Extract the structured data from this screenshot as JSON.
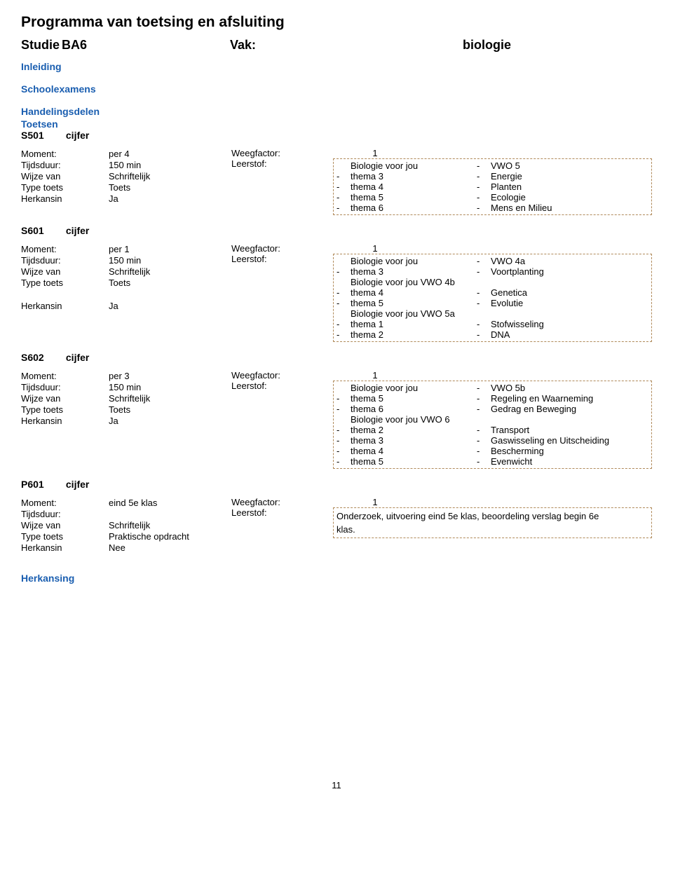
{
  "title": "Programma van toetsing en afsluiting",
  "studie_label": "Studie",
  "studie_value": "BA6",
  "vak_label": "Vak:",
  "vak_value": "biologie",
  "inleiding": "Inleiding",
  "schoolex": "Schoolexamens",
  "handelingsdelen": "Handelingsdelen",
  "toetsen": "Toetsen",
  "wf_label": "Weegfactor:",
  "ls_label": "Leerstof:",
  "labels": {
    "moment": "Moment:",
    "tijdsduur": "Tijdsduur:",
    "wijze": "Wijze van",
    "typetoets": "Type toets",
    "herkansin": "Herkansin"
  },
  "s501": {
    "code": "S501",
    "result": "cijfer",
    "moment": "per 4",
    "tijdsduur": "150 min",
    "wijze": "Schriftelijk",
    "typetoets": "Toets",
    "herkansin": "Ja",
    "wf": "1",
    "rows": [
      [
        "",
        "Biologie voor jou",
        "-",
        "VWO 5"
      ],
      [
        "-",
        "thema 3",
        "-",
        "Energie"
      ],
      [
        "-",
        "thema 4",
        "-",
        "Planten"
      ],
      [
        "-",
        "thema 5",
        "-",
        "Ecologie"
      ],
      [
        "-",
        "thema 6",
        "-",
        "Mens en Milieu"
      ]
    ]
  },
  "s601": {
    "code": "S601",
    "result": "cijfer",
    "moment": "per 1",
    "tijdsduur": "150 min",
    "wijze": "Schriftelijk",
    "typetoets": "Toets",
    "herkansin": "Ja",
    "wf": "1",
    "rows": [
      [
        "",
        "Biologie voor jou",
        "-",
        "VWO 4a"
      ],
      [
        "-",
        "thema 3",
        "-",
        "Voortplanting"
      ],
      [
        "",
        "",
        "",
        ""
      ],
      [
        "",
        "Biologie voor jou VWO 4b",
        "",
        ""
      ],
      [
        "-",
        "thema 4",
        "-",
        "Genetica"
      ],
      [
        "-",
        "thema 5",
        "-",
        "Evolutie"
      ],
      [
        "",
        "Biologie voor jou VWO 5a",
        "",
        ""
      ],
      [
        "-",
        "thema 1",
        "-",
        "Stofwisseling"
      ],
      [
        "-",
        "thema 2",
        "-",
        "DNA"
      ]
    ]
  },
  "s602": {
    "code": "S602",
    "result": "cijfer",
    "moment": "per 3",
    "tijdsduur": "150 min",
    "wijze": "Schriftelijk",
    "typetoets": "Toets",
    "herkansin": "Ja",
    "wf": "1",
    "rows": [
      [
        "",
        "Biologie voor jou",
        "-",
        "VWO 5b"
      ],
      [
        "-",
        "thema 5",
        "-",
        "Regeling en Waarneming"
      ],
      [
        "-",
        "thema 6",
        "-",
        "Gedrag en Beweging"
      ],
      [
        "",
        "Biologie voor jou VWO 6",
        "",
        ""
      ],
      [
        "-",
        "thema 2",
        "-",
        "Transport"
      ],
      [
        "-",
        "thema 3",
        "-",
        "Gaswisseling en Uitscheiding"
      ],
      [
        "-",
        "thema 4",
        "-",
        "Bescherming"
      ],
      [
        "-",
        "thema 5",
        "-",
        "Evenwicht"
      ]
    ]
  },
  "p601": {
    "code": "P601",
    "result": "cijfer",
    "moment": "eind 5e klas",
    "tijdsduur": "",
    "wijze": "Schriftelijk",
    "typetoets": "Praktische opdracht",
    "herkansin": "Nee",
    "wf": "1",
    "text1": "Onderzoek, uitvoering eind 5e klas, beoordeling verslag begin 6e",
    "text2": "klas."
  },
  "herkansing": "Herkansing",
  "page_num": "11"
}
